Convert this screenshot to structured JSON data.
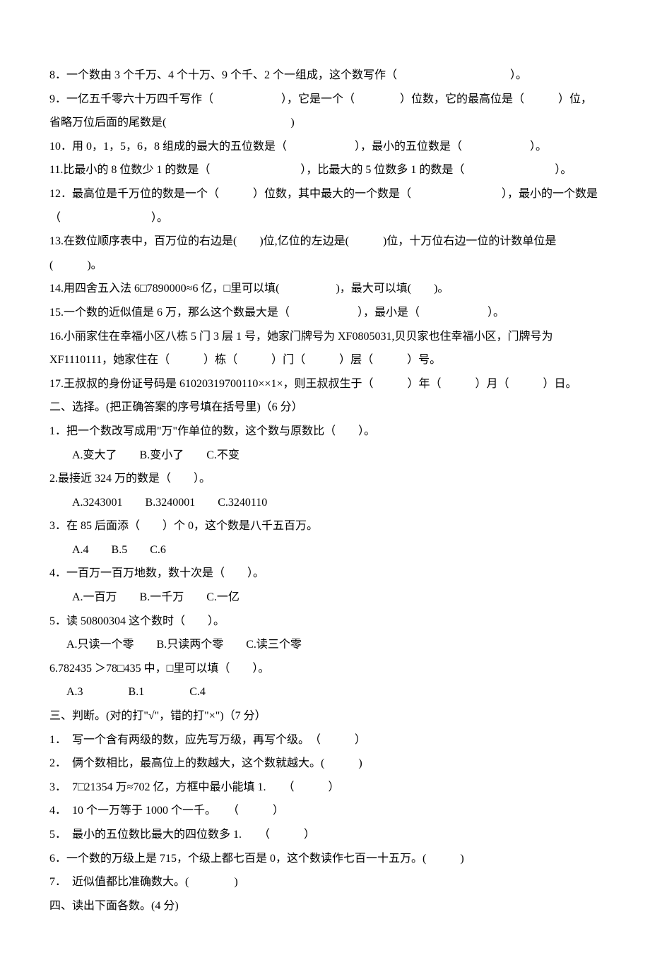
{
  "colors": {
    "background": "#ffffff",
    "text": "#000000"
  },
  "typography": {
    "font_family": "SimSun",
    "font_size_pt": 12,
    "line_height": 2.1
  },
  "fill_blank_questions": {
    "items": [
      "8．一个数由 3 个千万、4 个十万、9 个千、2 个一组成，这个数写作（　　　　　　　　　　）。",
      "9．一亿五千零六十万四千写作（　　　　　　），它是一个（　　　　）位数，它的最高位是（　　　）位，省略万位后面的尾数是(　　　　　　　　　　　)",
      "10．用 0，1，5，6，8 组成的最大的五位数是（　　　　　　），最小的五位数是（　　　　　　）。",
      "11.比最小的 8 位数少 1 的数是（　　　　　　　　），比最大的 5 位数多 1 的数是（　　　　　　　　）。",
      "12．最高位是千万位的数是一个（　　　）位数，其中最大的一个数是（　　　　　　　　），最小的一个数是（　　　　　　　　）。",
      "13.在数位顺序表中，百万位的右边是(　　)位,亿位的左边是(　　　)位，十万位右边一位的计数单位是(　　　)。",
      "14.用四舍五入法 6□7890000≈6 亿，□里可以填(　　　　　)，最大可以填(　　)。",
      "15.一个数的近似值是 6 万，那么这个数最大是（　　　　　　），最小是（　　　　　　）。",
      "16.小丽家住在幸福小区八栋 5 门 3 层 1 号，她家门牌号为 XF0805031,贝贝家也住幸福小区，门牌号为XF1110111，她家住在（　　　）栋（　　　）门（　　　）层（　　　）号。",
      "17.王叔叔的身份证号码是 61020319700110××1×，则王叔叔生于（　　　）年（　　　）月（　　　）日。"
    ]
  },
  "choice_section": {
    "title": "二、选择。(把正确答案的序号填在括号里)（6 分）",
    "items": [
      {
        "q": "1．把一个数改写成用\"万\"作单位的数，这个数与原数比（　　）。",
        "opts": "A.变大了　　B.变小了　　C.不变"
      },
      {
        "q": "2.最接近 324 万的数是（　　）。",
        "opts": "A.3243001　　B.3240001　　C.3240110"
      },
      {
        "q": "3．在 85 后面添（　　）个 0，这个数是八千五百万。",
        "opts": "A.4　　B.5　　C.6"
      },
      {
        "q": "4．一百万一百万地数，数十次是（　　）。",
        "opts": "A.一百万　　B.一千万　　C.一亿"
      },
      {
        "q": "5．读 50800304 这个数时（　　）。",
        "opts": "A.只读一个零　　B.只读两个零　　C.读三个零"
      },
      {
        "q": "6.782435 ＞78□435 中，□里可以填（　　）。",
        "opts": "A.3　　　　B.1　　　　C.4"
      }
    ]
  },
  "judge_section": {
    "title": "三、判断。(对的打\"√\"，错的打\"×\")（7 分）",
    "items": [
      "1．　写一个含有两级的数，应先写万级，再写个级。　（　　　）",
      "2．　俩个数相比，最高位上的数越大，这个数就越大。(　　　)",
      "3．　7□21354 万≈702 亿，方框中最小能填 1.　　（　　　）",
      "4．　10 个一万等于 1000 个一千。　　（　　　）",
      "5．　最小的五位数比最大的四位数多 1.　　（　　　）",
      "6．一个数的万级上是 715，个级上都七百是 0，这个数读作七百一十五万。(　　　)",
      "7．　近似值都比准确数大。(　　　　)"
    ]
  },
  "read_section": {
    "title": "四、读出下面各数。(4 分)"
  }
}
